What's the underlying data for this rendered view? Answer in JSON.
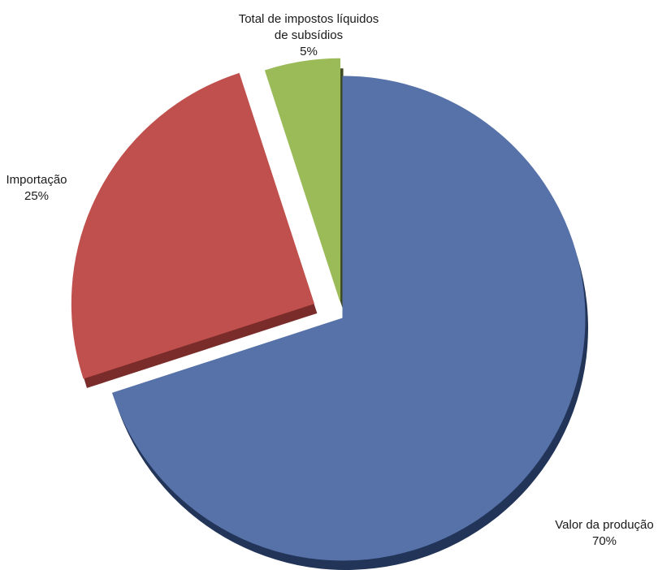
{
  "chart_data": {
    "type": "pie",
    "slices": [
      {
        "label_lines": [
          "Valor da produção"
        ],
        "value": 70,
        "value_label": "70%",
        "color": "#5672A9",
        "shade": "#223457"
      },
      {
        "label_lines": [
          "Importação"
        ],
        "value": 25,
        "value_label": "25%",
        "color": "#C0504D",
        "shade": "#7A2C2A"
      },
      {
        "label_lines": [
          "Total de impostos líquidos",
          "de subsídios"
        ],
        "value": 5,
        "value_label": "5%",
        "color": "#9BBB59",
        "shade": "#3F4A22"
      }
    ],
    "start_angle_deg": 0,
    "exploded": [
      "Importação",
      "Total de impostos líquidos de subsídios"
    ]
  }
}
